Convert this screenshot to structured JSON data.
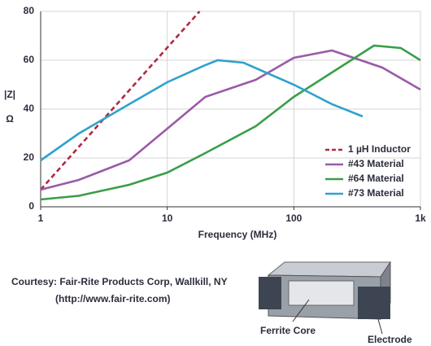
{
  "chart_data": {
    "type": "line",
    "x_label": "Frequency (MHz)",
    "y_label": "|Z|",
    "y_unit": "Ω",
    "log_x": true,
    "grid": true,
    "legend": "lower right",
    "xlim": [
      1,
      1000
    ],
    "xticks": [
      1,
      10,
      100,
      {
        "value": 1000,
        "label": "1k"
      }
    ],
    "ylim": [
      0,
      80
    ],
    "yticks": [
      0,
      20,
      40,
      60,
      80
    ],
    "series": [
      {
        "name": "1 µH Inductor",
        "color": "#b02a40",
        "dashed": true,
        "x": [
          1,
          18
        ],
        "values": [
          7,
          80
        ]
      },
      {
        "name": "#43 Material",
        "color": "#9a5ba8",
        "x": [
          1,
          2,
          5,
          10,
          20,
          50,
          100,
          200,
          500,
          1000
        ],
        "values": [
          7,
          11,
          19,
          32,
          45,
          52,
          61,
          64,
          57,
          48
        ]
      },
      {
        "name": "#64 Material",
        "color": "#3a9e48",
        "x": [
          1,
          2,
          5,
          10,
          20,
          50,
          100,
          200,
          430,
          700,
          1000
        ],
        "values": [
          3,
          4.5,
          9,
          14,
          22,
          33,
          45,
          55,
          66,
          65,
          60
        ]
      },
      {
        "name": "#73 Material",
        "color": "#2ea2cc",
        "x": [
          1,
          2,
          5,
          10,
          20,
          25,
          40,
          100,
          200,
          350
        ],
        "values": [
          19,
          30,
          42,
          51,
          58,
          60,
          59,
          50,
          42,
          37
        ]
      }
    ]
  },
  "credit": {
    "line1": "Courtesy: Fair-Rite Products Corp, Wallkill, NY",
    "line2": "(http://www.fair-rite.com)"
  },
  "figure": {
    "core_label": "Ferrite Core",
    "electrode_label": "Electrode"
  }
}
